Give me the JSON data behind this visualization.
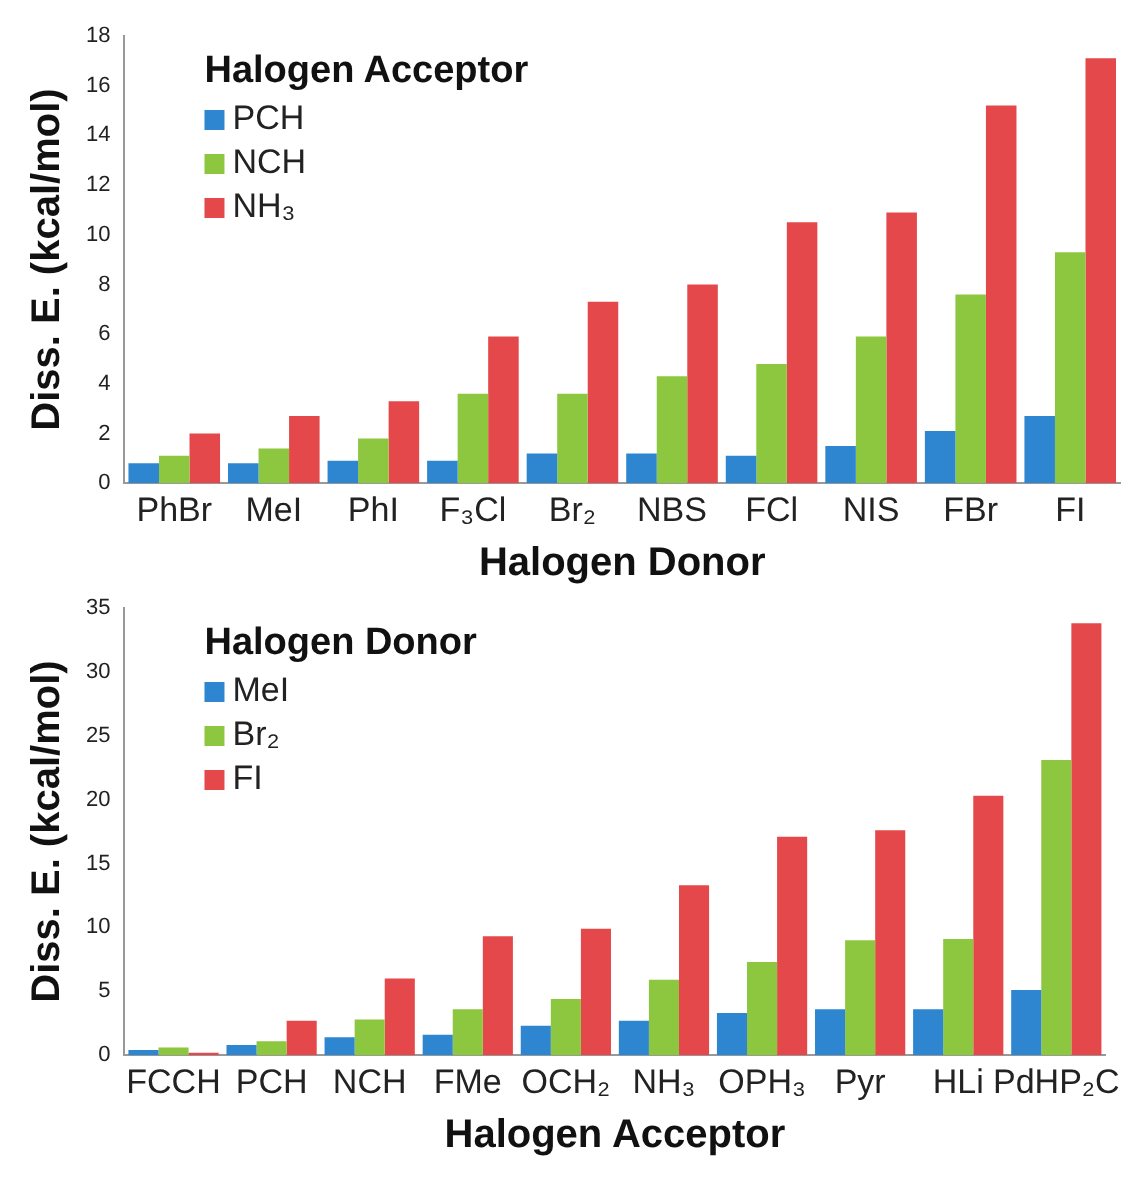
{
  "chart_data": [
    {
      "type": "bar",
      "xlabel": "Halogen Donor",
      "ylabel": "Diss. E. (kcal/mol)",
      "legend_title": "Halogen Acceptor",
      "legend": "top left",
      "grid": false,
      "categories": [
        "PhBr",
        "MeI",
        "PhI",
        "F₃Cl",
        "Br₂",
        "NBS",
        "FCl",
        "NIS",
        "FBr",
        "FI"
      ],
      "ylim": [
        0,
        18
      ],
      "yticks": [
        0,
        2,
        4,
        6,
        8,
        10,
        12,
        14,
        16,
        18
      ],
      "series": [
        {
          "name": "PCH",
          "color": "#2e86d0",
          "values": [
            0.8,
            0.8,
            0.9,
            0.9,
            1.2,
            1.2,
            1.1,
            1.5,
            2.1,
            2.7
          ]
        },
        {
          "name": "NCH",
          "color": "#8dc63f",
          "values": [
            1.1,
            1.4,
            1.8,
            3.6,
            3.6,
            4.3,
            4.8,
            5.9,
            7.6,
            9.3
          ]
        },
        {
          "name": "NH₃",
          "color": "#e5484a",
          "values": [
            2.0,
            2.7,
            3.3,
            5.9,
            7.3,
            8.0,
            10.5,
            10.9,
            15.2,
            17.1
          ]
        }
      ]
    },
    {
      "type": "bar",
      "xlabel": "Halogen Acceptor",
      "ylabel": "Diss. E. (kcal/mol)",
      "legend_title": "Halogen Donor",
      "legend": "top left",
      "grid": false,
      "categories": [
        "FCCH",
        "PCH",
        "NCH",
        "FMe",
        "OCH₂",
        "NH₃",
        "OPH₃",
        "Pyr",
        "HLi",
        "PdHP₂C"
      ],
      "ylim": [
        0,
        35
      ],
      "yticks": [
        0,
        5,
        10,
        15,
        20,
        25,
        30,
        35
      ],
      "series": [
        {
          "name": "MeI",
          "color": "#2e86d0",
          "values": [
            0.4,
            0.8,
            1.4,
            1.6,
            2.3,
            2.7,
            3.3,
            3.6,
            3.6,
            5.1
          ]
        },
        {
          "name": "Br₂",
          "color": "#8dc63f",
          "values": [
            0.6,
            1.1,
            2.8,
            3.6,
            4.4,
            5.9,
            7.3,
            9.0,
            9.1,
            23.1
          ]
        },
        {
          "name": "FI",
          "color": "#e5484a",
          "values": [
            0.2,
            2.7,
            6.0,
            9.3,
            9.9,
            13.3,
            17.1,
            17.6,
            20.3,
            33.8
          ]
        }
      ]
    }
  ]
}
